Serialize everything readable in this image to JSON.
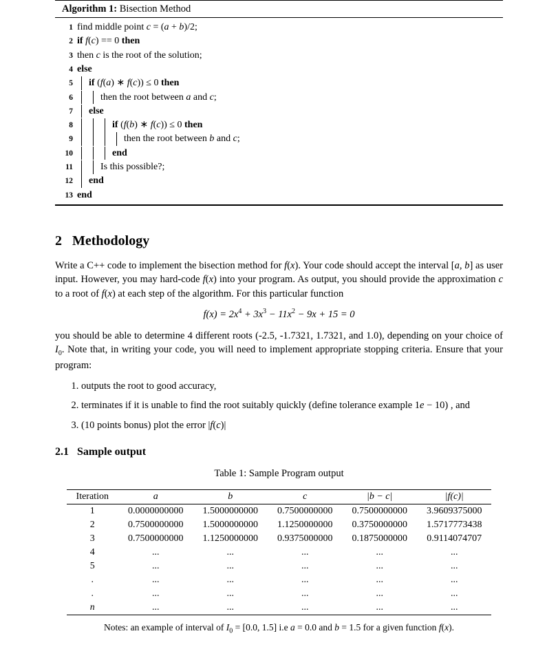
{
  "algorithm": {
    "header_bold": "Algorithm 1:",
    "header_rest": " Bisection Method",
    "lines": [
      {
        "n": "1",
        "indent": 0,
        "bar": false,
        "pre": "",
        "text": "find middle point <span class='it'>c</span> = (<span class='it'>a</span> + <span class='it'>b</span>)/2;"
      },
      {
        "n": "2",
        "indent": 0,
        "bar": false,
        "pre": "",
        "text": "<span class='bf'>if</span> <span class='it'>f</span>(<span class='it'>c</span>) == 0 <span class='bf'>then</span>"
      },
      {
        "n": "3",
        "indent": 0,
        "bar": true,
        "pre": "",
        "text": "then <span class='it'>c</span> is the root of the solution;"
      },
      {
        "n": "4",
        "indent": 0,
        "bar": false,
        "pre": "",
        "text": "<span class='bf'>else</span>"
      },
      {
        "n": "5",
        "indent": 1,
        "bar": true,
        "pre": "",
        "text": "<span class='bf'>if</span> (<span class='it'>f</span>(<span class='it'>a</span>) ∗ <span class='it'>f</span>(<span class='it'>c</span>)) ≤ 0 <span class='bf'>then</span>"
      },
      {
        "n": "6",
        "indent": 1,
        "bar": true,
        "pre": "bar",
        "text": "then the root between <span class='it'>a</span> and <span class='it'>c</span>;"
      },
      {
        "n": "7",
        "indent": 1,
        "bar": true,
        "pre": "",
        "text": "<span class='bf'>else</span>"
      },
      {
        "n": "8",
        "indent": 2,
        "bar": true,
        "pre": "bar",
        "text": "<span class='bf'>if</span> (<span class='it'>f</span>(<span class='it'>b</span>) ∗ <span class='it'>f</span>(<span class='it'>c</span>)) ≤ 0 <span class='bf'>then</span>"
      },
      {
        "n": "9",
        "indent": 2,
        "bar": true,
        "pre": "bar2",
        "text": "then the root between <span class='it'>b</span> and <span class='it'>c</span>;"
      },
      {
        "n": "10",
        "indent": 2,
        "bar": true,
        "pre": "bar",
        "text": "<span class='bf'>end</span>"
      },
      {
        "n": "11",
        "indent": 2,
        "bar": true,
        "pre": "",
        "text": "Is this possible?;"
      },
      {
        "n": "12",
        "indent": 1,
        "bar": true,
        "pre": "",
        "text": "<span class='bf'>end</span>"
      },
      {
        "n": "13",
        "indent": 0,
        "bar": false,
        "pre": "",
        "text": "<span class='bf'>end</span>"
      }
    ]
  },
  "section": {
    "num": "2",
    "title": "Methodology",
    "para1": "Write a C++ code to implement the bisection method for <span class='it'>f</span>(<span class='it'>x</span>). Your code should accept the interval [<span class='it'>a, b</span>] as user input. However, you may hard-code <span class='it'>f</span>(<span class='it'>x</span>) into your program. As output, you should provide the approximation <span class='it'>c</span> to a root of <span class='it'>f</span>(<span class='it'>x</span>) at each step of the algorithm. For this particular function",
    "equation": "f(x) = 2x<sup style='font-style:normal;font-size:10px'>4</sup> + 3x<sup style='font-style:normal;font-size:10px'>3</sup> − 11x<sup style='font-style:normal;font-size:10px'>2</sup> − 9x + 15 = 0",
    "para2": "you should be able to determine 4 different roots (-2.5, -1.7321, 1.7321, and 1.0), depending on your choice of <span class='it'>I</span><sub style='font-size:10px'>0</sub>. Note that, in writing your code, you will need to implement appropriate stopping criteria. Ensure that your program:",
    "items": [
      "outputs the root to good accuracy,",
      "terminates if it is unable to find the root suitably quickly (define tolerance example 1<span class='it'>e</span> − 10) , and",
      "(10 points bonus) plot the error |<span class='it'>f</span>(<span class='it'>c</span>)|"
    ],
    "sub_num": "2.1",
    "sub_title": "Sample output",
    "table_caption": "Table 1: Sample Program output",
    "table": {
      "headers": [
        "Iteration",
        "a",
        "b",
        "c",
        "|b − c|",
        "|f(c)|"
      ],
      "header_italic": [
        false,
        true,
        true,
        true,
        true,
        true
      ],
      "rows": [
        [
          "1",
          "0.0000000000",
          "1.5000000000",
          "0.7500000000",
          "0.7500000000",
          "3.9609375000"
        ],
        [
          "2",
          "0.7500000000",
          "1.5000000000",
          "1.1250000000",
          "0.3750000000",
          "1.5717773438"
        ],
        [
          "3",
          "0.7500000000",
          "1.1250000000",
          "0.9375000000",
          "0.1875000000",
          "0.9114074707"
        ],
        [
          "4",
          "...",
          "...",
          "...",
          "...",
          "..."
        ],
        [
          "5",
          "...",
          "...",
          "...",
          "...",
          "..."
        ],
        [
          ".",
          "...",
          "...",
          "...",
          "...",
          "..."
        ],
        [
          ".",
          "...",
          "...",
          "...",
          "...",
          "..."
        ],
        [
          "n",
          "...",
          "...",
          "...",
          "...",
          "..."
        ]
      ],
      "row_italic_first": [
        false,
        false,
        false,
        false,
        false,
        false,
        false,
        true
      ]
    },
    "notes": "Notes: an example of interval of <span class='it'>I</span><sub style='font-size:10px'>0</sub> = [0.0, 1.5] i.e <span class='it'>a</span> = 0.0 and <span class='it'>b</span> = 1.5 for a given function <span class='it'>f</span>(<span class='it'>x</span>)."
  }
}
